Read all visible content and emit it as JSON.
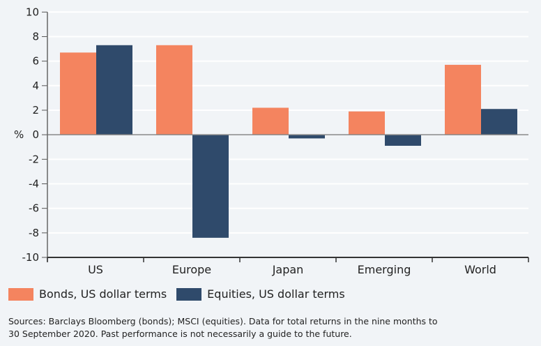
{
  "chart_data": {
    "type": "bar",
    "categories": [
      "US",
      "Europe",
      "Japan",
      "Emerging",
      "World"
    ],
    "series": [
      {
        "name": "Bonds, US dollar terms",
        "color": "#f4845f",
        "values": [
          6.7,
          7.3,
          2.2,
          1.9,
          5.7
        ]
      },
      {
        "name": "Equities, US dollar terms",
        "color": "#2f4a6b",
        "values": [
          7.3,
          -8.4,
          -0.3,
          -0.9,
          2.1
        ]
      }
    ],
    "ylabel": "%",
    "ylim": [
      -10,
      10
    ],
    "yticks": [
      10,
      8,
      6,
      4,
      2,
      0,
      -2,
      -4,
      -6,
      -8,
      -10
    ],
    "grid": true,
    "legend_placement": "bottom-left"
  },
  "source_lines": [
    "Sources: Barclays Bloomberg (bonds); MSCI (equities). Data for total returns in the nine months to",
    "30 September 2020. Past performance is not necessarily a guide to the future."
  ]
}
